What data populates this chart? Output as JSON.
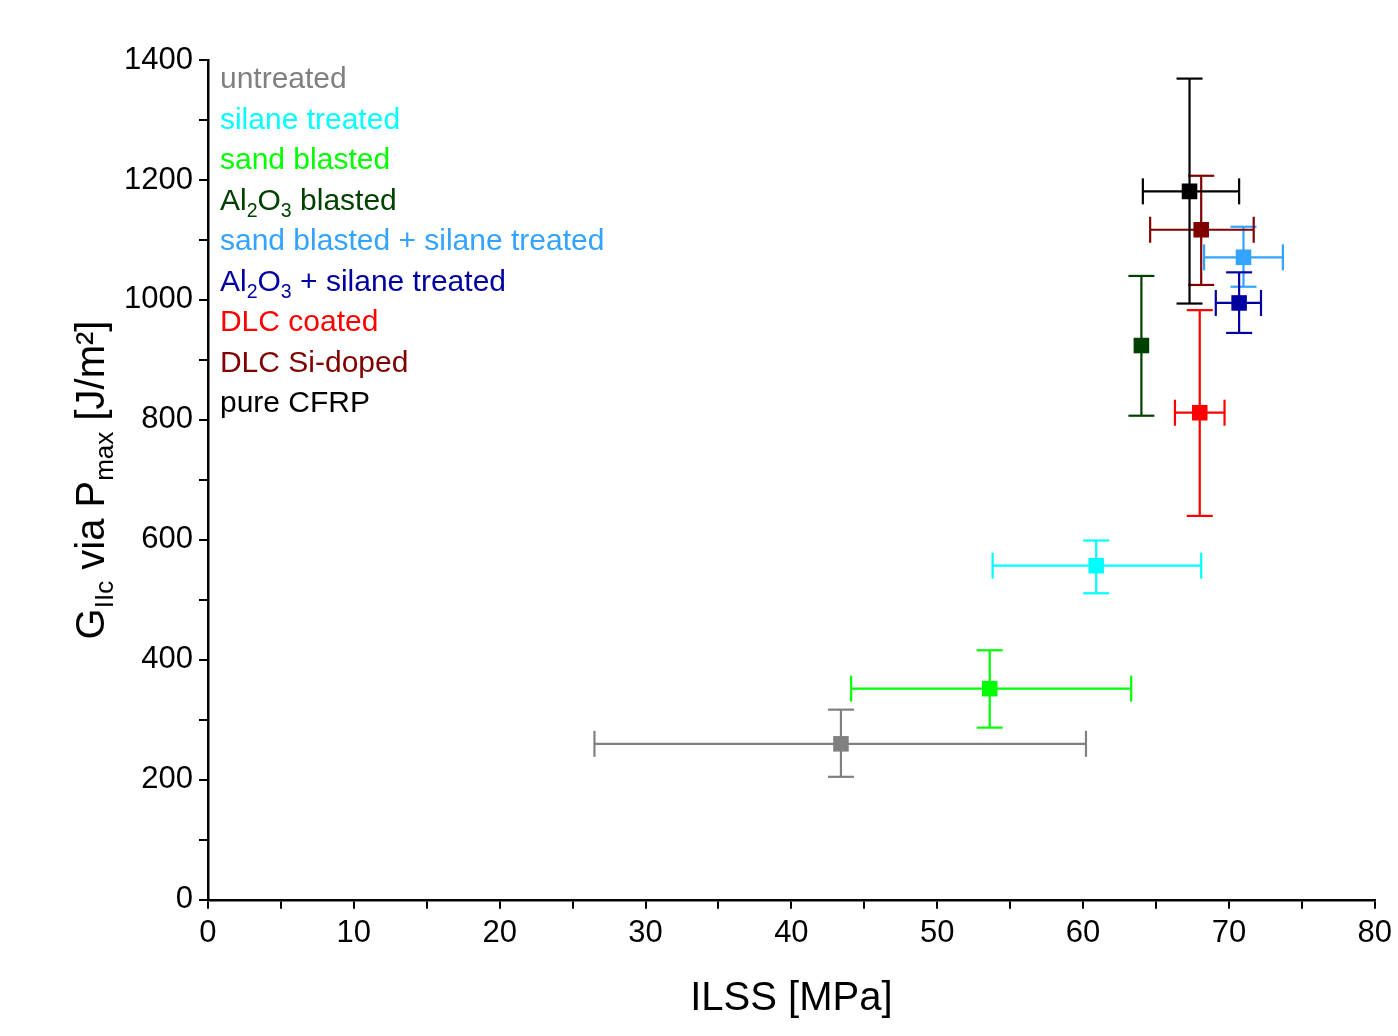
{
  "chart_data": {
    "type": "scatter",
    "xlabel": "ILSS [MPa]",
    "ylabel": "G$_{IIc}$ via P$_{max}$ [J/m²]",
    "xlim": [
      0,
      80
    ],
    "ylim": [
      0,
      1400
    ],
    "xticks": [
      0,
      {
        "value": 5,
        "label": null
      },
      10,
      {
        "value": 15,
        "label": null
      },
      20,
      {
        "value": 25,
        "label": null
      },
      30,
      {
        "value": 35,
        "label": null
      },
      40,
      {
        "value": 45,
        "label": null
      },
      50,
      {
        "value": 55,
        "label": null
      },
      60,
      {
        "value": 65,
        "label": null
      },
      70,
      {
        "value": 75,
        "label": null
      },
      80
    ],
    "yticks": [
      0,
      {
        "value": 100,
        "label": null
      },
      200,
      {
        "value": 300,
        "label": null
      },
      400,
      {
        "value": 500,
        "label": null
      },
      600,
      {
        "value": 700,
        "label": null
      },
      800,
      {
        "value": 900,
        "label": null
      },
      1000,
      {
        "value": 1100,
        "label": null
      },
      1200,
      {
        "value": 1300,
        "label": null
      },
      1400
    ],
    "grid": false,
    "legend": "top left",
    "marker": "square",
    "series": [
      {
        "name": "untreated",
        "color": "#808080",
        "x": [
          43.4
        ],
        "values": [
          260
        ],
        "errors": [
          [
            205,
            317
          ]
        ],
        "xerrors": [
          [
            26.5,
            60.2
          ]
        ]
      },
      {
        "name": "silane treated",
        "color": "#00ffff",
        "x": [
          60.9
        ],
        "values": [
          557
        ],
        "errors": [
          [
            511,
            599
          ]
        ],
        "xerrors": [
          [
            53.8,
            68.1
          ]
        ]
      },
      {
        "name": "sand blasted",
        "color": "#00ff00",
        "x": [
          53.6
        ],
        "values": [
          352
        ],
        "errors": [
          [
            287,
            416
          ]
        ],
        "xerrors": [
          [
            44.1,
            63.3
          ]
        ]
      },
      {
        "name": "Al$_{2}$O$_{3}$ blasted",
        "color": "#004000",
        "x": [
          64.0
        ],
        "values": [
          924
        ],
        "errors": [
          [
            807,
            1040
          ]
        ],
        "xerrors": [
          null
        ]
      },
      {
        "name": "sand blasted + silane treated",
        "color": "#33a3ff",
        "x": [
          71.0
        ],
        "values": [
          1071
        ],
        "errors": [
          [
            1022,
            1122
          ]
        ],
        "xerrors": [
          [
            68.3,
            73.7
          ]
        ]
      },
      {
        "name": "Al$_{2}$O$_{3}$ + silane treated",
        "color": "#0000a0",
        "x": [
          70.7
        ],
        "values": [
          995
        ],
        "errors": [
          [
            945,
            1046
          ]
        ],
        "xerrors": [
          [
            69.1,
            72.2
          ]
        ]
      },
      {
        "name": "DLC coated",
        "color": "#ff0000",
        "x": [
          68.0
        ],
        "values": [
          812
        ],
        "errors": [
          [
            640,
            983
          ]
        ],
        "xerrors": [
          [
            66.3,
            69.7
          ]
        ]
      },
      {
        "name": "DLC Si-doped",
        "color": "#800000",
        "x": [
          68.1
        ],
        "values": [
          1117
        ],
        "errors": [
          [
            1025,
            1207
          ]
        ],
        "xerrors": [
          [
            64.6,
            71.7
          ]
        ]
      },
      {
        "name": "pure CFRP",
        "color": "#000000",
        "x": [
          67.3
        ],
        "values": [
          1181
        ],
        "errors": [
          [
            994,
            1369
          ]
        ],
        "xerrors": [
          [
            64.1,
            70.7
          ]
        ]
      }
    ]
  }
}
